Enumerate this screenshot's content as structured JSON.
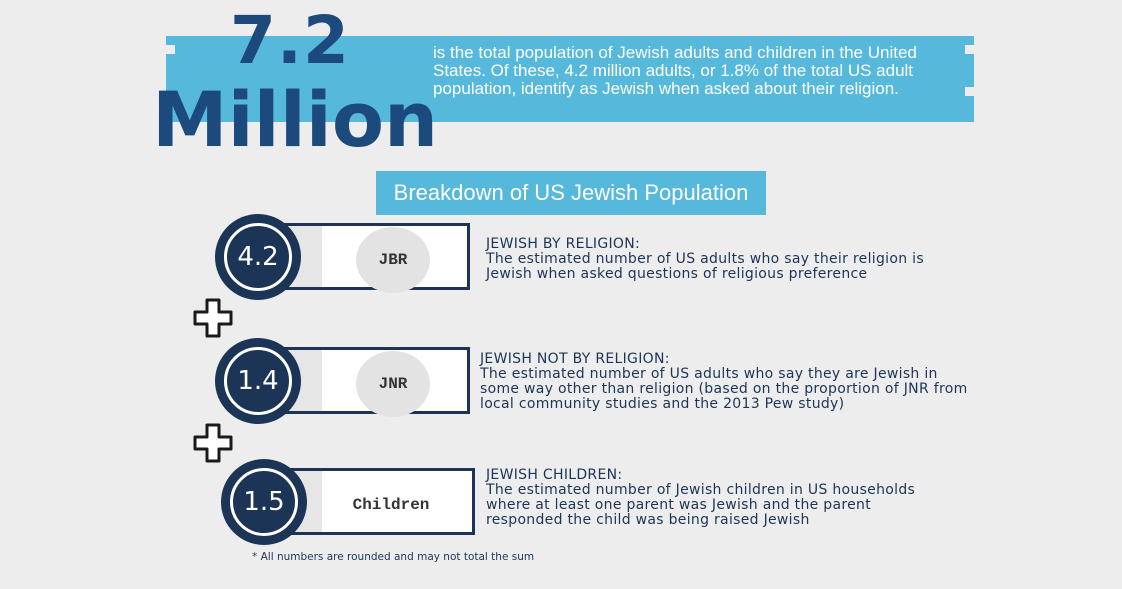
{
  "hero": {
    "number": "7.2",
    "word": "Million",
    "text": "is the total population of Jewish adults and children in the United States. Of these, 4.2 million adults, or 1.8% of the total US adult population, identify as Jewish when asked about their religion."
  },
  "subtitle": "Breakdown of US Jewish Population",
  "rows": [
    {
      "value": "4.2",
      "code": "JBR",
      "heading": "JEWISH BY RELIGION:",
      "description": "The estimated number of US adults who say their religion is Jewish when asked questions of religious preference"
    },
    {
      "value": "1.4",
      "code": "JNR",
      "heading": "JEWISH NOT BY RELIGION:",
      "description": "The estimated number of US adults who say they are Jewish in some way other than religion (based on the proportion of JNR from local community studies and the 2013 Pew study)"
    },
    {
      "value": "1.5",
      "code": "Children",
      "heading": "JEWISH CHILDREN:",
      "description": "The estimated number of Jewish children in US households where at least one parent was Jewish and the parent responded the child was being raised Jewish"
    }
  ],
  "footnote": "* All numbers are rounded and may not total the sum",
  "colors": {
    "background": "#ededed",
    "accent": "#56b9dc",
    "navy": "#1c3556",
    "heading_blue": "#1d4a7c"
  },
  "icons": [
    "plus-icon",
    "plus-icon"
  ]
}
